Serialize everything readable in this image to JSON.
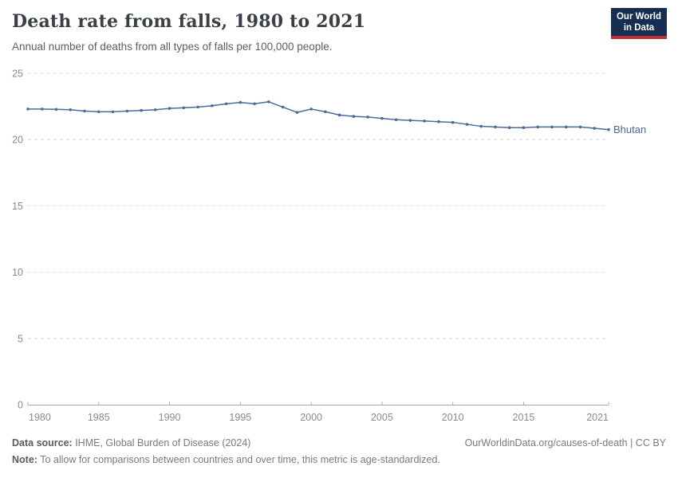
{
  "header": {
    "title": "Death rate from falls, 1980 to 2021",
    "subtitle": "Annual number of deaths from all types of falls per 100,000 people.",
    "logo": {
      "line1": "Our World",
      "line2": "in Data"
    }
  },
  "chart_data": {
    "type": "line",
    "title": "Death rate from falls, 1980 to 2021",
    "xlabel": "",
    "ylabel": "",
    "xlim": [
      1980,
      2021
    ],
    "ylim": [
      0,
      25
    ],
    "yticks": [
      0,
      5,
      10,
      15,
      20,
      25
    ],
    "xticks": [
      1980,
      1985,
      1990,
      1995,
      2000,
      2005,
      2010,
      2015,
      2021
    ],
    "grid": "horizontal-dashed",
    "legend_position": "end-of-line",
    "x": [
      1980,
      1981,
      1982,
      1983,
      1984,
      1985,
      1986,
      1987,
      1988,
      1989,
      1990,
      1991,
      1992,
      1993,
      1994,
      1995,
      1996,
      1997,
      1998,
      1999,
      2000,
      2001,
      2002,
      2003,
      2004,
      2005,
      2006,
      2007,
      2008,
      2009,
      2010,
      2011,
      2012,
      2013,
      2014,
      2015,
      2016,
      2017,
      2018,
      2019,
      2020,
      2021
    ],
    "series": [
      {
        "name": "Bhutan",
        "color": "#4C6A9C",
        "values": [
          22.3,
          22.3,
          22.28,
          22.25,
          22.15,
          22.1,
          22.1,
          22.15,
          22.2,
          22.25,
          22.35,
          22.4,
          22.45,
          22.55,
          22.7,
          22.8,
          22.7,
          22.85,
          22.45,
          22.05,
          22.3,
          22.1,
          21.85,
          21.75,
          21.7,
          21.6,
          21.5,
          21.45,
          21.4,
          21.35,
          21.3,
          21.15,
          21.0,
          20.95,
          20.9,
          20.9,
          20.95,
          20.95,
          20.95,
          20.95,
          20.85,
          20.75
        ]
      }
    ]
  },
  "footer": {
    "datasource_label": "Data source:",
    "datasource_value": " IHME, Global Burden of Disease (2024)",
    "note_label": "Note:",
    "note_value": " To allow for comparisons between countries and over time, this metric is age-standardized.",
    "link": "OurWorldinData.org/causes-of-death | CC BY"
  },
  "colors": {
    "line": "#4C6A9C",
    "grid": "#dcdcdc",
    "axis_line": "#a8a8a8",
    "axis_text": "#8a8a8a",
    "logo_navy": "#152e52",
    "logo_red": "#bf2e36"
  }
}
